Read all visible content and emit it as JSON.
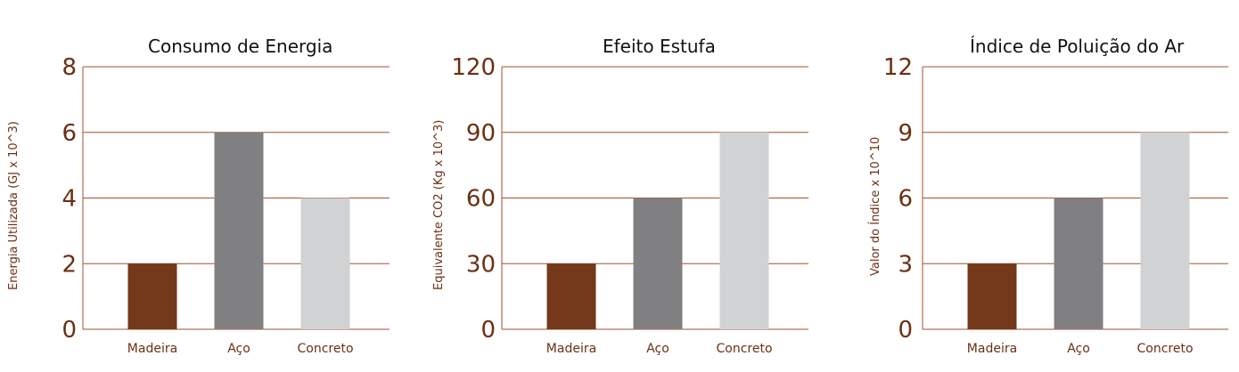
{
  "chart_data": [
    {
      "type": "bar",
      "title": "Consumo de Energia",
      "ylabel": "Energia Utilizada (GJ x 10^3)",
      "categories": [
        "Madeira",
        "Aço",
        "Concreto"
      ],
      "values": [
        2,
        6,
        4
      ],
      "yticks": [
        0,
        2,
        4,
        6,
        8
      ],
      "ylim": [
        0,
        8
      ],
      "grid": true,
      "colors": [
        "#74381a",
        "#808083",
        "#d1d2d4"
      ]
    },
    {
      "type": "bar",
      "title": "Efeito Estufa",
      "ylabel": "Equivalente CO2 (Kg x 10^3)",
      "categories": [
        "Madeira",
        "Aço",
        "Concreto"
      ],
      "values": [
        30,
        60,
        90
      ],
      "yticks": [
        0,
        30,
        60,
        90,
        120
      ],
      "ylim": [
        0,
        120
      ],
      "grid": true,
      "colors": [
        "#74381a",
        "#808083",
        "#d1d2d4"
      ]
    },
    {
      "type": "bar",
      "title": "Índice de Poluição do Ar",
      "ylabel": "Valor do Índice x 10^10",
      "categories": [
        "Madeira",
        "Aço",
        "Concreto"
      ],
      "values": [
        3,
        6,
        9
      ],
      "yticks": [
        0,
        3,
        6,
        9,
        12
      ],
      "ylim": [
        0,
        12
      ],
      "grid": true,
      "colors": [
        "#74381a",
        "#808083",
        "#d1d2d4"
      ]
    }
  ],
  "style": {
    "axis_color": "#a0522d",
    "tick_label_color": "#6b2f12"
  }
}
